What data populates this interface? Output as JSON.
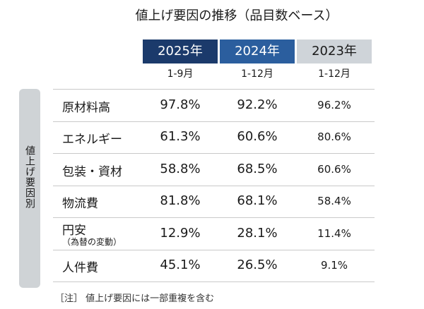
{
  "title": "値上げ要因の推移（品目数ベース）",
  "columns": [
    {
      "year": "2025年",
      "period": "1-9月"
    },
    {
      "year": "2024年",
      "period": "1-12月"
    },
    {
      "year": "2023年",
      "period": "1-12月"
    }
  ],
  "side_label": "値上げ要因別",
  "rows": [
    {
      "label": "原材料高",
      "values": [
        "97.8%",
        "92.2%",
        "96.2%"
      ]
    },
    {
      "label": "エネルギー",
      "values": [
        "61.3%",
        "60.6%",
        "80.6%"
      ]
    },
    {
      "label": "包装・資材",
      "values": [
        "58.8%",
        "68.5%",
        "60.6%"
      ]
    },
    {
      "label": "物流費",
      "values": [
        "81.8%",
        "68.1%",
        "58.4%"
      ]
    },
    {
      "label": "円安",
      "sublabel": "（為替の変動）",
      "values": [
        "12.9%",
        "28.1%",
        "11.4%"
      ]
    },
    {
      "label": "人件費",
      "values": [
        "45.1%",
        "26.5%",
        "9.1%"
      ]
    }
  ],
  "note": "［注］ 値上げ要因には一部重複を含む"
}
